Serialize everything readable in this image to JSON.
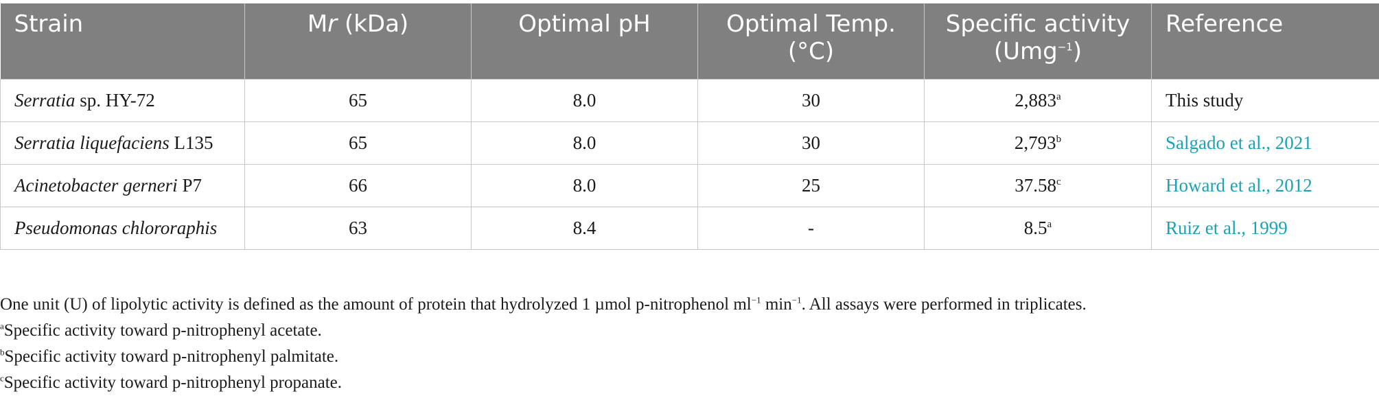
{
  "table": {
    "headers": {
      "strain": "Strain",
      "mr_prefix": "M",
      "mr_italic": "r",
      "mr_suffix": " (kDa)",
      "ph": "Optimal pH",
      "temp_line1": "Optimal Temp.",
      "temp_line2": "(°C)",
      "activity_line1": "Specific activity",
      "activity_line2": "(Umg",
      "activity_exp": "−1",
      "activity_close": ")",
      "reference": "Reference"
    },
    "rows": [
      {
        "strain_italic": "Serratia",
        "strain_rest": " sp. HY-72",
        "mr": "65",
        "ph": "8.0",
        "temp": "30",
        "activity": "2,883",
        "activity_sup": "a",
        "reference": "This study",
        "reference_link": false
      },
      {
        "strain_italic": "Serratia liquefaciens",
        "strain_rest": " L135",
        "mr": "65",
        "ph": "8.0",
        "temp": "30",
        "activity": "2,793",
        "activity_sup": "b",
        "reference": "Salgado et al., 2021",
        "reference_link": true
      },
      {
        "strain_italic": "Acinetobacter gerneri",
        "strain_rest": " P7",
        "mr": "66",
        "ph": "8.0",
        "temp": "25",
        "activity": "37.58",
        "activity_sup": "c",
        "reference": "Howard et al., 2012",
        "reference_link": true
      },
      {
        "strain_italic": "Pseudomonas chlororaphis",
        "strain_rest": "",
        "mr": "63",
        "ph": "8.4",
        "temp": "-",
        "activity": "8.5",
        "activity_sup": "a",
        "reference": "Ruiz et al., 1999",
        "reference_link": true
      }
    ]
  },
  "notes": {
    "unit_a": "One unit (U) of lipolytic activity is defined as the amount of protein that hydrolyzed 1 µmol p-nitrophenol ml",
    "unit_exp1": "−1",
    "unit_b": " min",
    "unit_exp2": "−1",
    "unit_c": ". All assays were performed in triplicates.",
    "footnotes": [
      {
        "mark": "a",
        "text": "Specific activity toward p-nitrophenyl acetate."
      },
      {
        "mark": "b",
        "text": "Specific activity toward p-nitrophenyl palmitate."
      },
      {
        "mark": "c",
        "text": "Specific activity toward p-nitrophenyl propanate."
      }
    ]
  },
  "colors": {
    "header_bg": "#7f807f",
    "link": "#1aa3b7"
  }
}
